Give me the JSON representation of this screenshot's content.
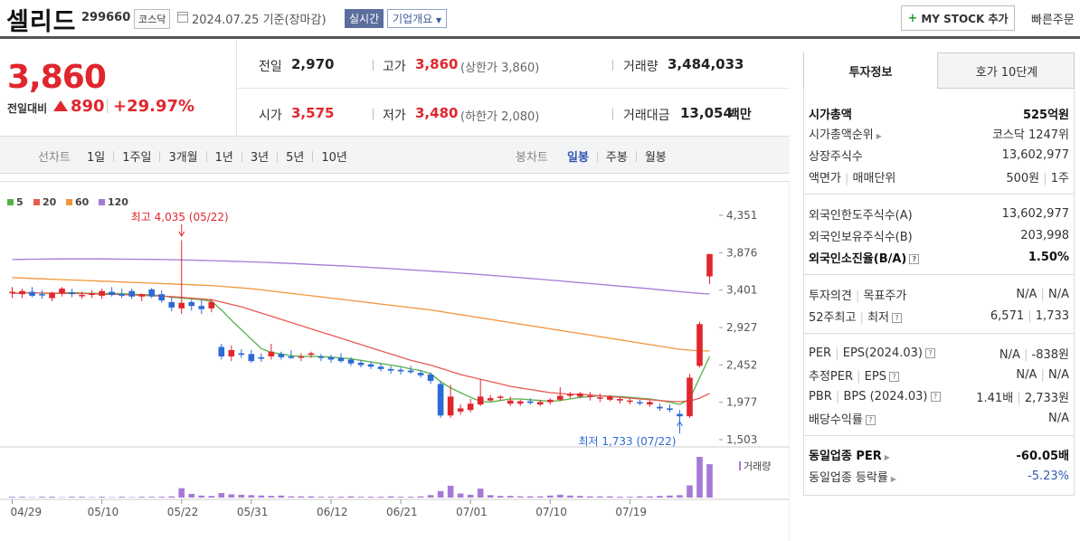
{
  "header": {
    "stock_name": "셀리드",
    "stock_code": "299660",
    "market": "코스닥",
    "date": "2024.07.25",
    "date_suffix": "기준(장마감)",
    "realtime": "실시간",
    "corp_info": "기업개요",
    "mystock": "MY STOCK 추가",
    "quick_order": "빠른주문"
  },
  "price": {
    "current": "3,860",
    "prev_label": "전일대비",
    "change": "890",
    "change_pct": "+29.97%"
  },
  "summary": {
    "prev_close_label": "전일",
    "prev_close": "2,970",
    "high_label": "고가",
    "high": "3,860",
    "upper_limit": "(상한가 3,860)",
    "volume_label": "거래량",
    "volume": "3,484,033",
    "open_label": "시가",
    "open": "3,575",
    "low_label": "저가",
    "low": "3,480",
    "lower_limit": "(하한가 2,080)",
    "amount_label": "거래대금",
    "amount": "13,054",
    "amount_unit": "백만"
  },
  "period_tabs": {
    "line_label": "선차트",
    "line_items": [
      "1일",
      "1주일",
      "3개월",
      "1년",
      "3년",
      "5년",
      "10년"
    ],
    "candle_label": "봉차트",
    "candle_items": [
      "일봉",
      "주봉",
      "월봉"
    ],
    "active": "일봉"
  },
  "chart_data": {
    "type": "candlestick",
    "legend": [
      {
        "name": "5",
        "color": "#56b04a"
      },
      {
        "name": "20",
        "color": "#e85a52"
      },
      {
        "name": "60",
        "color": "#f2963c"
      },
      {
        "name": "120",
        "color": "#a57ad6"
      }
    ],
    "y_ticks": [
      "4,351",
      "3,876",
      "3,401",
      "2,927",
      "2,452",
      "1,977",
      "1,503"
    ],
    "ylim": [
      1503,
      4351
    ],
    "x_ticks": [
      "04/29",
      "05/10",
      "05/22",
      "05/31",
      "06/12",
      "06/21",
      "07/01",
      "07/10",
      "07/19"
    ],
    "high_annotation": "최고 4,035 (05/22)",
    "low_annotation": "최저 1,733 (07/22)",
    "volume_label": "거래량",
    "candles": [
      {
        "o": 3365,
        "h": 3440,
        "l": 3300,
        "c": 3380
      },
      {
        "o": 3350,
        "h": 3420,
        "l": 3300,
        "c": 3390
      },
      {
        "o": 3380,
        "h": 3440,
        "l": 3310,
        "c": 3330
      },
      {
        "o": 3350,
        "h": 3400,
        "l": 3290,
        "c": 3340
      },
      {
        "o": 3300,
        "h": 3380,
        "l": 3260,
        "c": 3370
      },
      {
        "o": 3360,
        "h": 3440,
        "l": 3320,
        "c": 3420
      },
      {
        "o": 3370,
        "h": 3420,
        "l": 3310,
        "c": 3350
      },
      {
        "o": 3330,
        "h": 3380,
        "l": 3290,
        "c": 3340
      },
      {
        "o": 3340,
        "h": 3400,
        "l": 3300,
        "c": 3360
      },
      {
        "o": 3330,
        "h": 3420,
        "l": 3290,
        "c": 3390
      },
      {
        "o": 3380,
        "h": 3440,
        "l": 3320,
        "c": 3340
      },
      {
        "o": 3350,
        "h": 3420,
        "l": 3300,
        "c": 3330
      },
      {
        "o": 3390,
        "h": 3420,
        "l": 3290,
        "c": 3320
      },
      {
        "o": 3320,
        "h": 3360,
        "l": 3260,
        "c": 3350
      },
      {
        "o": 3410,
        "h": 3430,
        "l": 3300,
        "c": 3320
      },
      {
        "o": 3350,
        "h": 3400,
        "l": 3240,
        "c": 3270
      },
      {
        "o": 3250,
        "h": 3310,
        "l": 3130,
        "c": 3180
      },
      {
        "o": 3170,
        "h": 4035,
        "l": 3100,
        "c": 3240
      },
      {
        "o": 3250,
        "h": 3280,
        "l": 3140,
        "c": 3200
      },
      {
        "o": 3200,
        "h": 3280,
        "l": 3100,
        "c": 3160
      },
      {
        "o": 3170,
        "h": 3290,
        "l": 3120,
        "c": 3250
      },
      {
        "o": 2680,
        "h": 2720,
        "l": 2520,
        "c": 2560
      },
      {
        "o": 2560,
        "h": 2700,
        "l": 2500,
        "c": 2640
      },
      {
        "o": 2600,
        "h": 2650,
        "l": 2540,
        "c": 2580
      },
      {
        "o": 2590,
        "h": 2640,
        "l": 2480,
        "c": 2500
      },
      {
        "o": 2550,
        "h": 2600,
        "l": 2490,
        "c": 2530
      },
      {
        "o": 2560,
        "h": 2720,
        "l": 2520,
        "c": 2620
      },
      {
        "o": 2590,
        "h": 2620,
        "l": 2520,
        "c": 2550
      },
      {
        "o": 2560,
        "h": 2640,
        "l": 2530,
        "c": 2540
      },
      {
        "o": 2550,
        "h": 2600,
        "l": 2500,
        "c": 2560
      },
      {
        "o": 2580,
        "h": 2620,
        "l": 2540,
        "c": 2600
      },
      {
        "o": 2560,
        "h": 2590,
        "l": 2500,
        "c": 2540
      },
      {
        "o": 2550,
        "h": 2580,
        "l": 2480,
        "c": 2520
      },
      {
        "o": 2540,
        "h": 2600,
        "l": 2480,
        "c": 2500
      },
      {
        "o": 2520,
        "h": 2550,
        "l": 2440,
        "c": 2470
      },
      {
        "o": 2480,
        "h": 2510,
        "l": 2420,
        "c": 2450
      },
      {
        "o": 2460,
        "h": 2490,
        "l": 2400,
        "c": 2430
      },
      {
        "o": 2430,
        "h": 2470,
        "l": 2370,
        "c": 2400
      },
      {
        "o": 2400,
        "h": 2440,
        "l": 2340,
        "c": 2380
      },
      {
        "o": 2390,
        "h": 2420,
        "l": 2330,
        "c": 2370
      },
      {
        "o": 2380,
        "h": 2440,
        "l": 2340,
        "c": 2360
      },
      {
        "o": 2350,
        "h": 2390,
        "l": 2290,
        "c": 2320
      },
      {
        "o": 2330,
        "h": 2360,
        "l": 2210,
        "c": 2250
      },
      {
        "o": 2210,
        "h": 2250,
        "l": 1780,
        "c": 1810
      },
      {
        "o": 1810,
        "h": 2200,
        "l": 1780,
        "c": 2050
      },
      {
        "o": 1860,
        "h": 1950,
        "l": 1820,
        "c": 1900
      },
      {
        "o": 1880,
        "h": 2020,
        "l": 1850,
        "c": 1960
      },
      {
        "o": 1950,
        "h": 2270,
        "l": 1930,
        "c": 2050
      },
      {
        "o": 2000,
        "h": 2070,
        "l": 1980,
        "c": 2030
      },
      {
        "o": 2040,
        "h": 2070,
        "l": 2000,
        "c": 2050
      },
      {
        "o": 1960,
        "h": 2050,
        "l": 1930,
        "c": 2000
      },
      {
        "o": 1960,
        "h": 2010,
        "l": 1930,
        "c": 1990
      },
      {
        "o": 1990,
        "h": 2030,
        "l": 1950,
        "c": 1970
      },
      {
        "o": 1950,
        "h": 2010,
        "l": 1930,
        "c": 1980
      },
      {
        "o": 1980,
        "h": 2030,
        "l": 1950,
        "c": 2010
      },
      {
        "o": 2010,
        "h": 2170,
        "l": 1990,
        "c": 2060
      },
      {
        "o": 2060,
        "h": 2110,
        "l": 2030,
        "c": 2080
      },
      {
        "o": 2050,
        "h": 2110,
        "l": 2030,
        "c": 2090
      },
      {
        "o": 2050,
        "h": 2110,
        "l": 2000,
        "c": 2060
      },
      {
        "o": 2030,
        "h": 2090,
        "l": 1980,
        "c": 2040
      },
      {
        "o": 2010,
        "h": 2070,
        "l": 1990,
        "c": 2050
      },
      {
        "o": 2000,
        "h": 2040,
        "l": 1960,
        "c": 2020
      },
      {
        "o": 1990,
        "h": 2030,
        "l": 1950,
        "c": 2000
      },
      {
        "o": 1980,
        "h": 2010,
        "l": 1940,
        "c": 1970
      },
      {
        "o": 1950,
        "h": 2000,
        "l": 1920,
        "c": 1980
      },
      {
        "o": 1920,
        "h": 1960,
        "l": 1870,
        "c": 1900
      },
      {
        "o": 1900,
        "h": 1950,
        "l": 1850,
        "c": 1880
      },
      {
        "o": 1830,
        "h": 1880,
        "l": 1733,
        "c": 1800
      },
      {
        "o": 1800,
        "h": 2340,
        "l": 1780,
        "c": 2290
      },
      {
        "o": 2440,
        "h": 3000,
        "l": 2420,
        "c": 2970
      },
      {
        "o": 3575,
        "h": 3860,
        "l": 3480,
        "c": 3860
      }
    ],
    "volumes": [
      0.02,
      0.02,
      0.01,
      0.02,
      0.02,
      0.01,
      0.02,
      0.02,
      0.01,
      0.02,
      0.01,
      0.02,
      0.01,
      0.02,
      0.02,
      0.02,
      0.03,
      0.23,
      0.09,
      0.05,
      0.04,
      0.11,
      0.08,
      0.07,
      0.06,
      0.05,
      0.04,
      0.05,
      0.03,
      0.03,
      0.03,
      0.02,
      0.02,
      0.02,
      0.03,
      0.02,
      0.02,
      0.02,
      0.03,
      0.02,
      0.02,
      0.03,
      0.06,
      0.16,
      0.29,
      0.1,
      0.07,
      0.22,
      0.06,
      0.04,
      0.04,
      0.03,
      0.03,
      0.03,
      0.05,
      0.07,
      0.05,
      0.04,
      0.03,
      0.03,
      0.03,
      0.02,
      0.02,
      0.03,
      0.03,
      0.04,
      0.05,
      0.06,
      0.3,
      1.0,
      0.82
    ],
    "ma": {
      "5": [
        3360,
        3365,
        3368,
        3362,
        3360,
        3366,
        3370,
        3365,
        3360,
        3358,
        3360,
        3355,
        3350,
        3345,
        3340,
        3330,
        3310,
        3300,
        3290,
        3280,
        3260,
        3150,
        3020,
        2900,
        2780,
        2660,
        2610,
        2590,
        2570,
        2560,
        2560,
        2560,
        2550,
        2540,
        2530,
        2510,
        2490,
        2470,
        2450,
        2430,
        2400,
        2380,
        2340,
        2240,
        2160,
        2100,
        2040,
        1990,
        1980,
        2000,
        2020,
        2020,
        2010,
        2000,
        1990,
        2000,
        2020,
        2040,
        2050,
        2060,
        2055,
        2050,
        2040,
        2030,
        2020,
        2000,
        1980,
        1950,
        2020,
        2290,
        2560
      ],
      "20": [
        3360,
        3365,
        3368,
        3365,
        3362,
        3360,
        3360,
        3358,
        3355,
        3350,
        3348,
        3345,
        3340,
        3335,
        3330,
        3325,
        3320,
        3310,
        3300,
        3290,
        3280,
        3250,
        3220,
        3190,
        3150,
        3110,
        3070,
        3030,
        2990,
        2950,
        2910,
        2870,
        2830,
        2790,
        2750,
        2710,
        2670,
        2630,
        2590,
        2550,
        2510,
        2480,
        2450,
        2410,
        2370,
        2330,
        2300,
        2270,
        2240,
        2210,
        2180,
        2160,
        2140,
        2120,
        2100,
        2090,
        2080,
        2080,
        2070,
        2060,
        2050,
        2040,
        2030,
        2020,
        2010,
        2000,
        1990,
        1985,
        1995,
        2030,
        2090
      ],
      "60": [
        3560,
        3555,
        3550,
        3545,
        3540,
        3535,
        3530,
        3525,
        3520,
        3515,
        3510,
        3505,
        3500,
        3495,
        3490,
        3485,
        3480,
        3475,
        3470,
        3465,
        3460,
        3450,
        3440,
        3430,
        3420,
        3405,
        3390,
        3375,
        3360,
        3345,
        3330,
        3315,
        3300,
        3285,
        3270,
        3255,
        3240,
        3225,
        3210,
        3195,
        3180,
        3165,
        3150,
        3130,
        3110,
        3090,
        3070,
        3050,
        3030,
        3010,
        2990,
        2970,
        2950,
        2930,
        2910,
        2890,
        2870,
        2850,
        2830,
        2810,
        2790,
        2770,
        2750,
        2730,
        2710,
        2690,
        2670,
        2650,
        2640,
        2630,
        2630
      ],
      "120": [
        3790,
        3792,
        3794,
        3795,
        3796,
        3797,
        3798,
        3798,
        3798,
        3797,
        3796,
        3795,
        3794,
        3793,
        3792,
        3790,
        3788,
        3785,
        3782,
        3779,
        3776,
        3772,
        3768,
        3764,
        3760,
        3755,
        3750,
        3745,
        3740,
        3734,
        3728,
        3722,
        3716,
        3710,
        3703,
        3696,
        3689,
        3682,
        3675,
        3667,
        3659,
        3651,
        3643,
        3635,
        3626,
        3617,
        3608,
        3599,
        3590,
        3580,
        3570,
        3560,
        3550,
        3540,
        3529,
        3518,
        3507,
        3496,
        3485,
        3474,
        3463,
        3452,
        3441,
        3430,
        3418,
        3406,
        3394,
        3382,
        3370,
        3360,
        3352
      ]
    }
  },
  "invest_info": {
    "tabs": [
      "투자정보",
      "호가 10단계"
    ],
    "active_tab": "투자정보",
    "market_cap_label": "시가총액",
    "market_cap": "525억원",
    "rank_label": "시가총액순위",
    "rank": "코스닥 1247위",
    "shares_label": "상장주식수",
    "shares": "13,602,977",
    "face_label": "액면가",
    "trade_unit_label": "매매단위",
    "face": "500원",
    "trade_unit": "1주",
    "foreign_limit_label": "외국인한도주식수(A)",
    "foreign_limit": "13,602,977",
    "foreign_hold_label": "외국인보유주식수(B)",
    "foreign_hold": "203,998",
    "foreign_ratio_label": "외국인소진율(B/A)",
    "foreign_ratio": "1.50%",
    "opinion_label": "투자의견",
    "target_label": "목표주가",
    "opinion": "N/A",
    "target": "N/A",
    "week52_high_label": "52주최고",
    "week52_low_label": "최저",
    "week52_high": "6,571",
    "week52_low": "1,733",
    "per_label": "PER",
    "eps_label": "EPS(2024.03)",
    "per": "N/A",
    "eps": "-838원",
    "est_per_label": "추정PER",
    "est_eps_label": "EPS",
    "est_per": "N/A",
    "est_eps": "N/A",
    "pbr_label": "PBR",
    "bps_label": "BPS (2024.03)",
    "pbr": "1.41배",
    "bps": "2,733원",
    "dividend_label": "배당수익률",
    "dividend": "N/A",
    "sector_per_label": "동일업종 PER",
    "sector_per": "-60.05배",
    "sector_rate_label": "동일업종 등락률",
    "sector_rate": "-5.23%"
  }
}
